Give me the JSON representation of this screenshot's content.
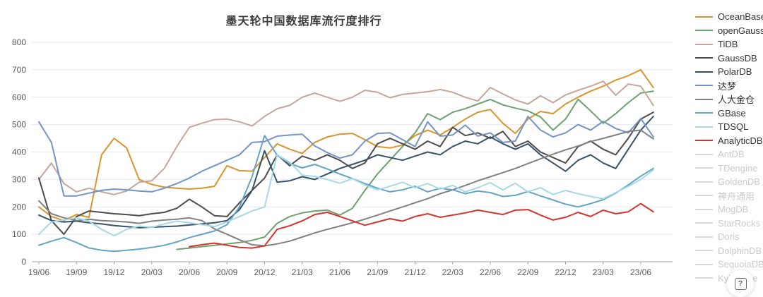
{
  "title": "墨天轮中国数据库流行度排行",
  "help_button": {
    "icon": "?"
  },
  "palette": {
    "grid_color": "#e4ebf4",
    "axis_color": "#a6a6a6",
    "tick_text_color": "#5b5b5b",
    "inactive_line_color": "#d8d8d8",
    "inactive_text_color": "#cbcbcb"
  },
  "chart_data": {
    "type": "line",
    "title": "墨天轮中国数据库流行度排行",
    "legend_position": "right",
    "grid": true,
    "ylim": [
      0,
      800
    ],
    "y_ticks": [
      0,
      100,
      200,
      300,
      400,
      500,
      600,
      700,
      800
    ],
    "x_tick_labels": [
      "19/06",
      "19/09",
      "19/12",
      "20/03",
      "20/06",
      "20/09",
      "20/12",
      "21/03",
      "21/06",
      "21/09",
      "21/12",
      "22/03",
      "22/06",
      "22/09",
      "22/12",
      "23/03",
      "23/06"
    ],
    "x": [
      "19/06",
      "19/07",
      "19/08",
      "19/09",
      "19/10",
      "19/11",
      "19/12",
      "20/01",
      "20/02",
      "20/03",
      "20/04",
      "20/05",
      "20/06",
      "20/07",
      "20/08",
      "20/09",
      "20/10",
      "20/11",
      "20/12",
      "21/01",
      "21/02",
      "21/03",
      "21/04",
      "21/05",
      "21/06",
      "21/07",
      "21/08",
      "21/09",
      "21/10",
      "21/11",
      "21/12",
      "22/01",
      "22/02",
      "22/03",
      "22/04",
      "22/05",
      "22/06",
      "22/07",
      "22/08",
      "22/09",
      "22/10",
      "22/11",
      "22/12",
      "23/01",
      "23/02",
      "23/03",
      "23/04",
      "23/05",
      "23/06",
      "23/07"
    ],
    "series": [
      {
        "name": "OceanBase",
        "slug": "oceanbase",
        "color": "#d9952b",
        "values": [
          200,
          165,
          150,
          172,
          162,
          390,
          450,
          415,
          300,
          282,
          272,
          268,
          265,
          268,
          275,
          350,
          332,
          330,
          380,
          430,
          410,
          395,
          435,
          455,
          465,
          468,
          445,
          420,
          415,
          425,
          460,
          480,
          462,
          490,
          520,
          545,
          555,
          505,
          468,
          520,
          548,
          540,
          575,
          600,
          622,
          640,
          662,
          678,
          700,
          635
        ]
      },
      {
        "name": "openGauss",
        "slug": "opengauss",
        "color": "#6ca170",
        "values": [
          null,
          null,
          null,
          null,
          null,
          null,
          null,
          null,
          null,
          null,
          null,
          45,
          50,
          55,
          60,
          65,
          70,
          78,
          90,
          140,
          165,
          178,
          185,
          188,
          170,
          195,
          260,
          320,
          370,
          420,
          470,
          540,
          518,
          545,
          558,
          575,
          592,
          572,
          560,
          550,
          528,
          480,
          520,
          592,
          550,
          505,
          540,
          580,
          615,
          622
        ]
      },
      {
        "name": "TiDB",
        "slug": "tidb",
        "color": "#c7a59a",
        "values": [
          300,
          360,
          285,
          255,
          268,
          255,
          245,
          258,
          290,
          295,
          340,
          420,
          490,
          505,
          518,
          520,
          510,
          495,
          530,
          558,
          570,
          600,
          615,
          600,
          585,
          600,
          625,
          618,
          598,
          610,
          615,
          620,
          628,
          618,
          600,
          586,
          635,
          612,
          590,
          575,
          605,
          580,
          608,
          625,
          640,
          658,
          607,
          648,
          640,
          570
        ]
      },
      {
        "name": "GaussDB",
        "slug": "gaussdb",
        "color": "#4d4d4d",
        "values": [
          305,
          150,
          100,
          165,
          185,
          180,
          175,
          172,
          168,
          175,
          180,
          195,
          228,
          200,
          168,
          165,
          215,
          260,
          305,
          390,
          350,
          385,
          370,
          390,
          370,
          340,
          360,
          430,
          450,
          430,
          410,
          440,
          420,
          490,
          460,
          470,
          450,
          475,
          420,
          440,
          400,
          380,
          360,
          420,
          440,
          410,
          390,
          450,
          520,
          545
        ]
      },
      {
        "name": "PolarDB",
        "slug": "polardb",
        "color": "#36526b",
        "values": [
          170,
          150,
          145,
          148,
          142,
          138,
          132,
          128,
          124,
          126,
          128,
          130,
          134,
          138,
          142,
          150,
          190,
          260,
          405,
          290,
          295,
          310,
          300,
          320,
          340,
          355,
          370,
          390,
          380,
          370,
          385,
          400,
          390,
          420,
          440,
          430,
          455,
          430,
          410,
          430,
          390,
          360,
          330,
          370,
          390,
          360,
          340,
          410,
          480,
          530
        ]
      },
      {
        "name": "达梦",
        "slug": "dameng",
        "color": "#7494c6",
        "values": [
          510,
          435,
          240,
          240,
          250,
          260,
          265,
          262,
          258,
          255,
          268,
          285,
          305,
          330,
          350,
          370,
          390,
          435,
          438,
          458,
          462,
          465,
          422,
          398,
          378,
          390,
          440,
          468,
          470,
          445,
          420,
          510,
          458,
          462,
          498,
          458,
          470,
          435,
          440,
          530,
          480,
          455,
          470,
          500,
          480,
          512,
          486,
          470,
          522,
          455
        ]
      },
      {
        "name": "人大金仓",
        "slug": "renda-jincang",
        "color": "#818181",
        "values": [
          222,
          175,
          160,
          150,
          155,
          150,
          148,
          145,
          140,
          148,
          152,
          155,
          160,
          150,
          120,
          100,
          80,
          62,
          58,
          65,
          75,
          90,
          105,
          118,
          130,
          142,
          155,
          170,
          185,
          200,
          215,
          230,
          248,
          262,
          278,
          295,
          310,
          325,
          340,
          358,
          375,
          392,
          408,
          422,
          438,
          450,
          462,
          475,
          480,
          448
        ]
      },
      {
        "name": "GBase",
        "slug": "gbase",
        "color": "#62a4c8",
        "values": [
          60,
          75,
          88,
          70,
          50,
          42,
          38,
          42,
          46,
          52,
          60,
          72,
          88,
          100,
          112,
          135,
          200,
          310,
          460,
          388,
          358,
          342,
          355,
          338,
          320,
          303,
          285,
          268,
          255,
          262,
          275,
          255,
          268,
          262,
          248,
          258,
          252,
          238,
          242,
          256,
          240,
          225,
          210,
          200,
          212,
          226,
          250,
          280,
          312,
          340
        ]
      },
      {
        "name": "TDSQL",
        "slug": "tdsql",
        "color": "#a6d9e4",
        "values": [
          100,
          145,
          152,
          160,
          148,
          118,
          95,
          118,
          130,
          125,
          138,
          148,
          142,
          135,
          128,
          145,
          165,
          185,
          200,
          390,
          363,
          316,
          311,
          300,
          286,
          303,
          280,
          262,
          275,
          290,
          270,
          285,
          265,
          278,
          255,
          270,
          288,
          262,
          286,
          255,
          270,
          245,
          260,
          248,
          238,
          230,
          252,
          275,
          300,
          335
        ]
      },
      {
        "name": "AnalyticDB",
        "slug": "analyticdb",
        "color": "#d5332d",
        "values": [
          null,
          null,
          null,
          null,
          null,
          null,
          null,
          null,
          null,
          null,
          null,
          null,
          55,
          62,
          68,
          60,
          52,
          50,
          58,
          118,
          131,
          149,
          172,
          180,
          165,
          149,
          133,
          145,
          157,
          148,
          165,
          175,
          162,
          170,
          178,
          188,
          180,
          172,
          188,
          190,
          170,
          152,
          162,
          180,
          165,
          188,
          175,
          182,
          212,
          182
        ]
      }
    ],
    "disabled_series": [
      {
        "name": "AntDB",
        "slug": "antdb"
      },
      {
        "name": "TDengine",
        "slug": "tdengine"
      },
      {
        "name": "GoldenDB",
        "slug": "goldendb"
      },
      {
        "name": "神舟通用",
        "slug": "shenzhou-tongyong"
      },
      {
        "name": "MogDB",
        "slug": "mogdb"
      },
      {
        "name": "StarRocks",
        "slug": "starrocks"
      },
      {
        "name": "Doris",
        "slug": "doris"
      },
      {
        "name": "DolphinDB",
        "slug": "dolphindb"
      },
      {
        "name": "SequoiaDB",
        "slug": "sequoiadb"
      },
      {
        "name": "Kyligence",
        "slug": "kyligence"
      }
    ]
  }
}
